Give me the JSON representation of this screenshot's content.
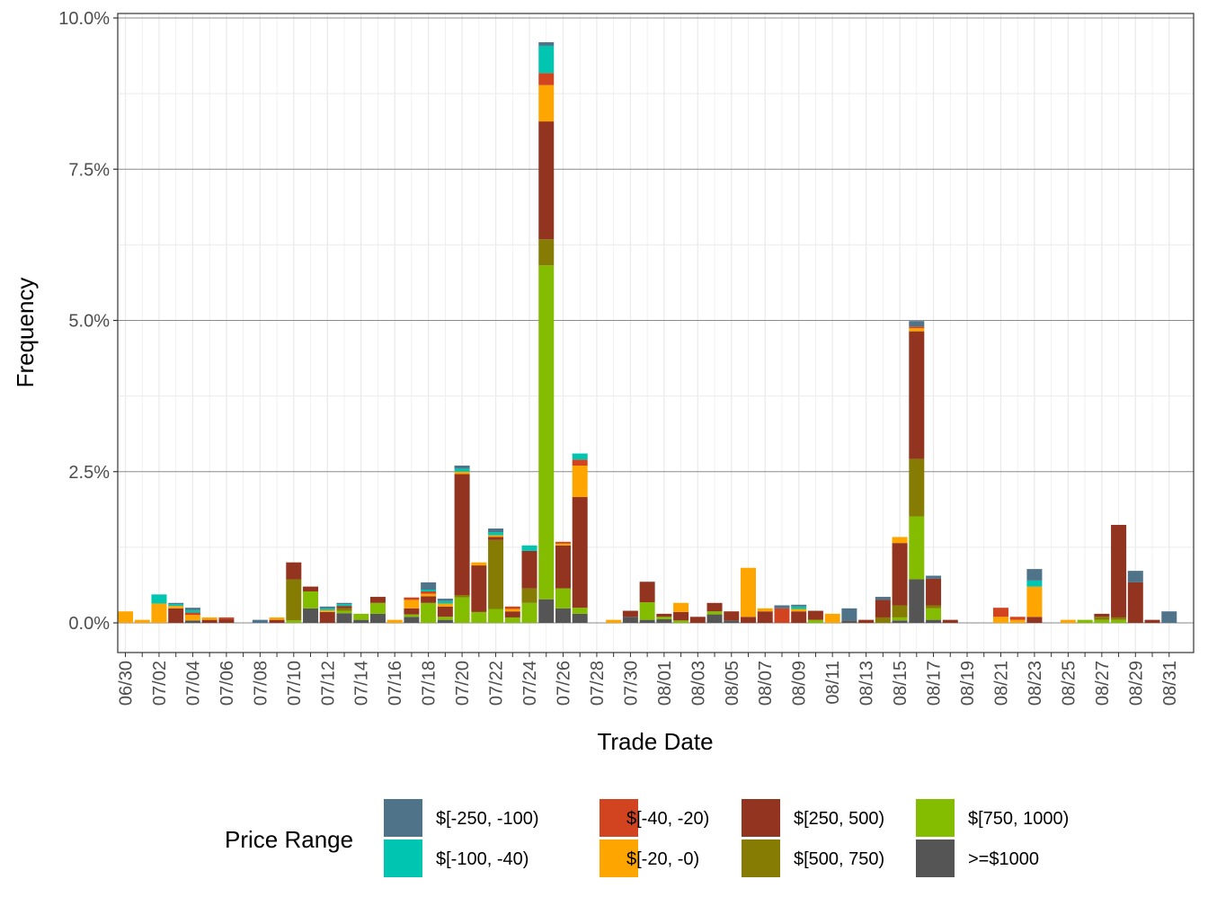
{
  "chart_data": {
    "type": "bar",
    "stacked": true,
    "xlabel": "Trade Date",
    "ylabel": "Frequency",
    "ylim": [
      -0.5,
      10.0
    ],
    "y_ticks": [
      0,
      2.5,
      5,
      7.5,
      10
    ],
    "y_tick_labels": [
      "0.0%",
      "2.5%",
      "5.0%",
      "7.5%",
      "10.0%"
    ],
    "x_tick_labels": [
      "06/30",
      "07/02",
      "07/04",
      "07/06",
      "07/08",
      "07/10",
      "07/12",
      "07/14",
      "07/16",
      "07/18",
      "07/20",
      "07/22",
      "07/24",
      "07/26",
      "07/28",
      "07/30",
      "08/01",
      "08/03",
      "08/05",
      "08/07",
      "08/09",
      "08/11",
      "08/13",
      "08/15",
      "08/17",
      "08/19",
      "08/21",
      "08/23",
      "08/25",
      "08/27",
      "08/29",
      "08/31"
    ],
    "legend": {
      "title": "Price Range",
      "position": "bottom"
    },
    "stack_order": [
      ">=$1000",
      "$[750, 1000)",
      "$[500, 750)",
      "$[250, 500)",
      "$[-20, -0)",
      "$[-40, -20)",
      "$[-100, -40)",
      "$[-250, -100)"
    ],
    "series": [
      {
        "name": "$[-250, -100)",
        "color": "#4f7389"
      },
      {
        "name": "$[-100, -40)",
        "color": "#00c5b0"
      },
      {
        "name": "$[-40, -20)",
        "color": "#d24420"
      },
      {
        "name": "$[-20, -0)",
        "color": "#ffa500"
      },
      {
        "name": "$[250, 500)",
        "color": "#933420"
      },
      {
        "name": "$[500, 750)",
        "color": "#867c04"
      },
      {
        "name": "$[750, 1000)",
        "color": "#84bc00"
      },
      {
        "name": ">=$1000",
        "color": "#555555"
      }
    ],
    "bars": [
      {
        "date": "06/30",
        "values": {
          "$[-20, -0)": 0.19
        }
      },
      {
        "date": "07/01",
        "values": {
          "$[-20, -0)": 0.05
        }
      },
      {
        "date": "07/02",
        "values": {
          "$[-20, -0)": 0.32,
          "$[-100, -40)": 0.15
        }
      },
      {
        "date": "07/03",
        "values": {
          "$[250, 500)": 0.24,
          "$[-20, -0)": 0.04,
          "$[-100, -40)": 0.03,
          "$[-250, -100)": 0.02
        }
      },
      {
        "date": "07/04",
        "values": {
          ">=$1000": 0.04,
          "$[-20, -0)": 0.09,
          "$[-40, -20)": 0.04,
          "$[-100, -40)": 0.04,
          "$[-250, -100)": 0.04
        }
      },
      {
        "date": "07/05",
        "values": {
          "$[250, 500)": 0.05,
          "$[-20, -0)": 0.04
        }
      },
      {
        "date": "07/06",
        "values": {
          "$[250, 500)": 0.06,
          "$[-40, -20)": 0.03
        }
      },
      {
        "date": "07/08",
        "values": {
          "$[-250, -100)": 0.05
        }
      },
      {
        "date": "07/09",
        "values": {
          "$[250, 500)": 0.05,
          "$[-20, -0)": 0.04
        }
      },
      {
        "date": "07/10",
        "values": {
          "$[750, 1000)": 0.04,
          "$[500, 750)": 0.68,
          "$[250, 500)": 0.28
        }
      },
      {
        "date": "07/11",
        "values": {
          ">=$1000": 0.24,
          "$[750, 1000)": 0.28,
          "$[250, 500)": 0.08
        }
      },
      {
        "date": "07/12",
        "values": {
          "$[250, 500)": 0.18,
          "$[-20, -0)": 0.03,
          "$[-100, -40)": 0.03,
          "$[-250, -100)": 0.03
        }
      },
      {
        "date": "07/13",
        "values": {
          ">=$1000": 0.16,
          "$[750, 1000)": 0.04,
          "$[500, 750)": 0.04,
          "$[250, 500)": 0.04,
          "$[-100, -40)": 0.03,
          "$[-250, -100)": 0.02
        }
      },
      {
        "date": "07/14",
        "values": {
          ">=$1000": 0.05,
          "$[750, 1000)": 0.1
        }
      },
      {
        "date": "07/15",
        "values": {
          ">=$1000": 0.15,
          "$[750, 1000)": 0.18,
          "$[250, 500)": 0.1
        }
      },
      {
        "date": "07/16",
        "values": {
          "$[-20, -0)": 0.05
        }
      },
      {
        "date": "07/17",
        "values": {
          ">=$1000": 0.1,
          "$[750, 1000)": 0.04,
          "$[250, 500)": 0.1,
          "$[-20, -0)": 0.14,
          "$[-40, -20)": 0.04
        }
      },
      {
        "date": "07/18",
        "values": {
          "$[750, 1000)": 0.33,
          "$[250, 500)": 0.11,
          "$[-20, -0)": 0.04,
          "$[-40, -20)": 0.04,
          "$[-100, -40)": 0.03,
          "$[-250, -100)": 0.12
        }
      },
      {
        "date": "07/19",
        "values": {
          ">=$1000": 0.05,
          "$[750, 1000)": 0.05,
          "$[250, 500)": 0.17,
          "$[-20, -0)": 0.05,
          "$[-100, -40)": 0.04,
          "$[-250, -100)": 0.04
        }
      },
      {
        "date": "07/20",
        "values": {
          "$[750, 1000)": 0.42,
          "$[500, 750)": 0.04,
          "$[250, 500)": 2.0,
          "$[-20, -0)": 0.04,
          "$[-100, -40)": 0.05,
          "$[-250, -100)": 0.05
        }
      },
      {
        "date": "07/21",
        "values": {
          "$[750, 1000)": 0.18,
          "$[250, 500)": 0.77,
          "$[-20, -0)": 0.05
        }
      },
      {
        "date": "07/22",
        "values": {
          "$[750, 1000)": 0.23,
          "$[500, 750)": 1.14,
          "$[250, 500)": 0.05,
          "$[-20, -0)": 0.03,
          "$[-100, -40)": 0.05,
          "$[-250, -100)": 0.06
        }
      },
      {
        "date": "07/23",
        "values": {
          "$[750, 1000)": 0.09,
          "$[250, 500)": 0.1,
          "$[-20, -0)": 0.04,
          "$[-40, -20)": 0.04
        }
      },
      {
        "date": "07/24",
        "values": {
          "$[750, 1000)": 0.33,
          "$[500, 750)": 0.24,
          "$[250, 500)": 0.62,
          "$[-100, -40)": 0.09
        }
      },
      {
        "date": "07/25",
        "values": {
          ">=$1000": 0.39,
          "$[750, 1000)": 5.52,
          "$[500, 750)": 0.43,
          "$[250, 500)": 1.95,
          "$[-20, -0)": 0.6,
          "$[-40, -20)": 0.2,
          "$[-100, -40)": 0.45,
          "$[-250, -100)": 0.06
        }
      },
      {
        "date": "07/26",
        "values": {
          ">=$1000": 0.24,
          "$[750, 1000)": 0.33,
          "$[250, 500)": 0.71,
          "$[-20, -0)": 0.03,
          "$[-40, -20)": 0.03
        }
      },
      {
        "date": "07/27",
        "values": {
          ">=$1000": 0.15,
          "$[750, 1000)": 0.1,
          "$[250, 500)": 1.83,
          "$[-20, -0)": 0.52,
          "$[-40, -20)": 0.1,
          "$[-100, -40)": 0.1
        }
      },
      {
        "date": "07/29",
        "values": {
          "$[-20, -0)": 0.05
        }
      },
      {
        "date": "07/30",
        "values": {
          ">=$1000": 0.1,
          "$[250, 500)": 0.1
        }
      },
      {
        "date": "07/31",
        "values": {
          ">=$1000": 0.05,
          "$[750, 1000)": 0.29,
          "$[250, 500)": 0.34
        }
      },
      {
        "date": "08/01",
        "values": {
          ">=$1000": 0.06,
          "$[750, 1000)": 0.04,
          "$[250, 500)": 0.05
        }
      },
      {
        "date": "08/02",
        "values": {
          "$[750, 1000)": 0.04,
          "$[250, 500)": 0.14,
          "$[-20, -0)": 0.15
        }
      },
      {
        "date": "08/03",
        "values": {
          "$[250, 500)": 0.1
        }
      },
      {
        "date": "08/04",
        "values": {
          ">=$1000": 0.14,
          "$[750, 1000)": 0.05,
          "$[250, 500)": 0.14
        }
      },
      {
        "date": "08/05",
        "values": {
          ">=$1000": 0.04,
          "$[250, 500)": 0.15
        }
      },
      {
        "date": "08/06",
        "values": {
          "$[250, 500)": 0.1,
          "$[-20, -0)": 0.81
        }
      },
      {
        "date": "08/07",
        "values": {
          "$[250, 500)": 0.19,
          "$[-20, -0)": 0.05
        }
      },
      {
        "date": "08/08",
        "values": {
          "$[-40, -20)": 0.24,
          "$[-250, -100)": 0.05
        }
      },
      {
        "date": "08/09",
        "values": {
          "$[250, 500)": 0.19,
          "$[-20, -0)": 0.04,
          "$[-100, -40)": 0.04,
          "$[-250, -100)": 0.03
        }
      },
      {
        "date": "08/10",
        "values": {
          "$[750, 1000)": 0.05,
          "$[250, 500)": 0.15
        }
      },
      {
        "date": "08/11",
        "values": {
          "$[-20, -0)": 0.15
        }
      },
      {
        "date": "08/12",
        "values": {
          ">=$1000": 0.04,
          "$[-250, -100)": 0.2
        }
      },
      {
        "date": "08/13",
        "values": {
          "$[250, 500)": 0.05
        }
      },
      {
        "date": "08/14",
        "values": {
          "$[500, 750)": 0.09,
          "$[250, 500)": 0.29,
          "$[-250, -100)": 0.05
        }
      },
      {
        "date": "08/15",
        "values": {
          ">=$1000": 0.04,
          "$[750, 1000)": 0.05,
          "$[500, 750)": 0.2,
          "$[250, 500)": 1.03,
          "$[-20, -0)": 0.1
        }
      },
      {
        "date": "08/16",
        "values": {
          ">=$1000": 0.72,
          "$[750, 1000)": 1.04,
          "$[500, 750)": 0.95,
          "$[250, 500)": 2.11,
          "$[-20, -0)": 0.05,
          "$[-40, -20)": 0.03,
          "$[-250, -100)": 0.09
        }
      },
      {
        "date": "08/17",
        "values": {
          ">=$1000": 0.05,
          "$[750, 1000)": 0.19,
          "$[500, 750)": 0.05,
          "$[250, 500)": 0.44,
          "$[-250, -100)": 0.05
        }
      },
      {
        "date": "08/18",
        "values": {
          "$[250, 500)": 0.05
        }
      },
      {
        "date": "08/21",
        "values": {
          "$[-20, -0)": 0.1,
          "$[-40, -20)": 0.15
        }
      },
      {
        "date": "08/22",
        "values": {
          "$[-20, -0)": 0.05,
          "$[-40, -20)": 0.05
        }
      },
      {
        "date": "08/23",
        "values": {
          "$[250, 500)": 0.1,
          "$[-20, -0)": 0.5,
          "$[-100, -40)": 0.1,
          "$[-250, -100)": 0.19
        }
      },
      {
        "date": "08/25",
        "values": {
          "$[-20, -0)": 0.05
        }
      },
      {
        "date": "08/26",
        "values": {
          "$[750, 1000)": 0.05
        }
      },
      {
        "date": "08/27",
        "values": {
          "$[750, 1000)": 0.05,
          "$[500, 750)": 0.05,
          "$[250, 500)": 0.05
        }
      },
      {
        "date": "08/28",
        "values": {
          "$[750, 1000)": 0.05,
          "$[500, 750)": 0.04,
          "$[250, 500)": 1.53
        }
      },
      {
        "date": "08/29",
        "values": {
          "$[250, 500)": 0.67,
          "$[-250, -100)": 0.19
        }
      },
      {
        "date": "08/30",
        "values": {
          "$[250, 500)": 0.05
        }
      },
      {
        "date": "08/31",
        "values": {
          "$[-250, -100)": 0.19
        }
      }
    ]
  }
}
